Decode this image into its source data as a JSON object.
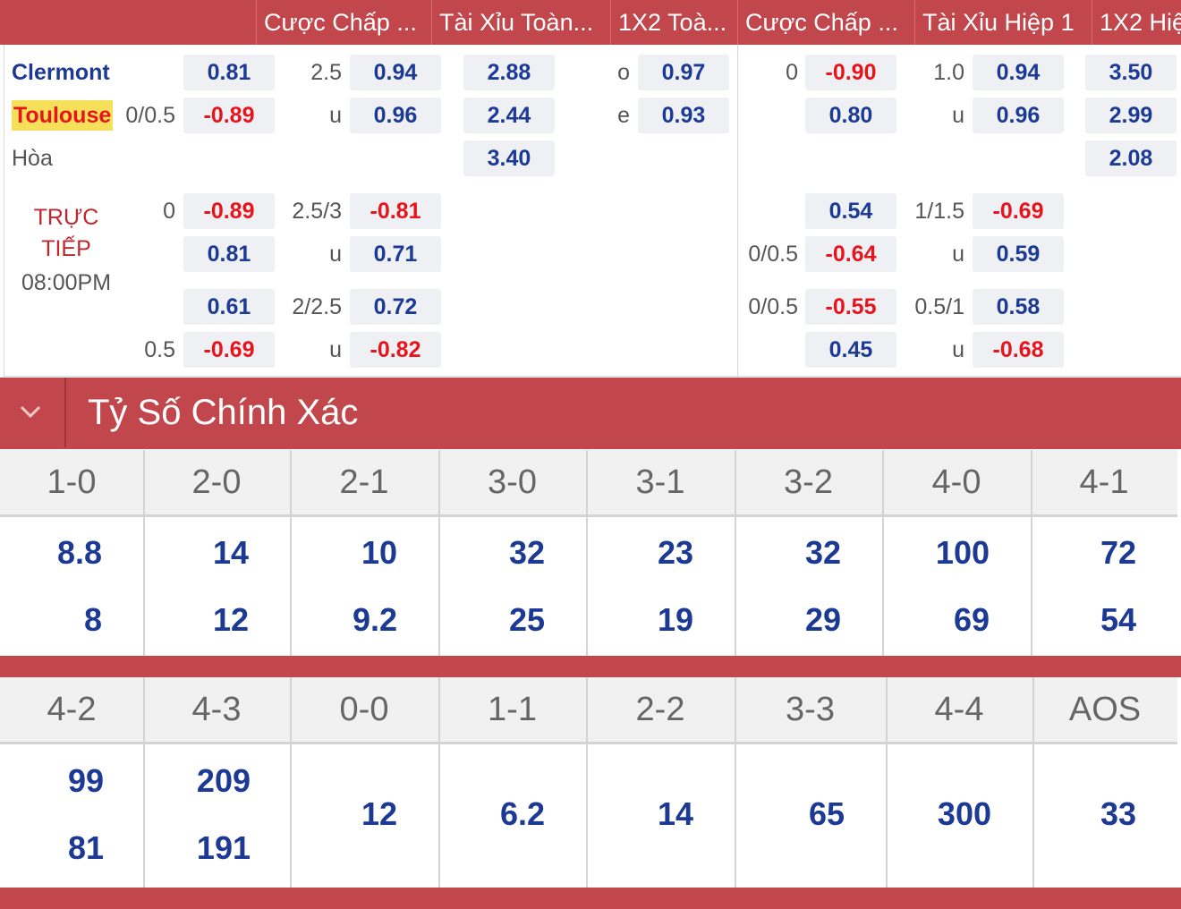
{
  "header_tabs": [
    "Cược Chấp ...",
    "Tài Xỉu Toàn...",
    "1X2 Toà...",
    "Cược Chấp ...",
    "Tài Xỉu Hiệp 1",
    "1X2 Hiệ"
  ],
  "match": {
    "home": "Clermont",
    "away": "Toulouse",
    "draw": "Hòa",
    "live_line1": "TRỰC",
    "live_line2": "TIẾP",
    "time": "08:00PM"
  },
  "main_odds": {
    "ft_handicap": {
      "line_away": "0/0.5",
      "home": "0.81",
      "away": "-0.89"
    },
    "ft_ou": {
      "line": "2.5",
      "u": "u",
      "over": "0.94",
      "under": "0.96"
    },
    "ft_1x2": {
      "home": "2.88",
      "away": "2.44",
      "draw": "3.40"
    },
    "oe": {
      "o": "o",
      "e": "e",
      "odd": "0.97",
      "even": "0.93"
    },
    "h1_handicap": {
      "line_home": "0",
      "home": "-0.90",
      "away": "0.80"
    },
    "h1_ou": {
      "line": "1.0",
      "u": "u",
      "over": "0.94",
      "under": "0.96"
    },
    "h1_1x2": {
      "home": "3.50",
      "away": "2.99",
      "draw": "2.08"
    }
  },
  "alt_odds": [
    {
      "hdp_line": "0",
      "hdp_top": "-0.89",
      "hdp_bottom": "0.81",
      "ou_line": "2.5/3",
      "ou_u": "u",
      "ou_top": "-0.81",
      "ou_bottom": "0.71",
      "h1_line": "0/0.5",
      "h1_top": "0.54",
      "h1_bottom": "-0.64",
      "h1ou_line": "1/1.5",
      "h1ou_u": "u",
      "h1ou_top": "-0.69",
      "h1ou_bottom": "0.59"
    },
    {
      "hdp_line": "0.5",
      "hdp_top": "0.61",
      "hdp_bottom": "-0.69",
      "ou_line": "2/2.5",
      "ou_u": "u",
      "ou_top": "0.72",
      "ou_bottom": "-0.82",
      "h1_line": "0/0.5",
      "h1_top": "-0.55",
      "h1_bottom": "0.45",
      "h1ou_line": "0.5/1",
      "h1ou_u": "u",
      "h1ou_top": "0.58",
      "h1ou_bottom": "-0.68"
    }
  ],
  "correct_score": {
    "title": "Tỷ Số Chính Xác",
    "row1": [
      {
        "score": "1-0",
        "home": "8.8",
        "away": "8"
      },
      {
        "score": "2-0",
        "home": "14",
        "away": "12"
      },
      {
        "score": "2-1",
        "home": "10",
        "away": "9.2"
      },
      {
        "score": "3-0",
        "home": "32",
        "away": "25"
      },
      {
        "score": "3-1",
        "home": "23",
        "away": "19"
      },
      {
        "score": "3-2",
        "home": "32",
        "away": "29"
      },
      {
        "score": "4-0",
        "home": "100",
        "away": "69"
      },
      {
        "score": "4-1",
        "home": "72",
        "away": "54"
      }
    ],
    "row2_pairs": [
      {
        "score": "4-2",
        "home": "99",
        "away": "81"
      },
      {
        "score": "4-3",
        "home": "209",
        "away": "191"
      }
    ],
    "row2_single": [
      {
        "score": "0-0",
        "value": "12"
      },
      {
        "score": "1-1",
        "value": "6.2"
      },
      {
        "score": "2-2",
        "value": "14"
      },
      {
        "score": "3-3",
        "value": "65"
      },
      {
        "score": "4-4",
        "value": "300"
      },
      {
        "score": "AOS",
        "value": "33"
      }
    ]
  },
  "colors": {
    "brand_red": "#c1474c",
    "odds_blue": "#1c3a94",
    "odds_red": "#e8141c",
    "highlight": "#f6e05a"
  },
  "icons": {
    "collapse": "chevron-down-icon"
  }
}
